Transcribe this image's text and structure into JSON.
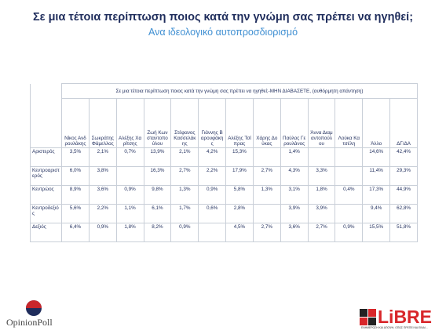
{
  "header": {
    "title": "Σε μια τέτοια περίπτωση ποιος κατά την γνώμη σας πρέπει να ηγηθεί;",
    "subtitle": "Ανα ιδεολογικό αυτοπροσδιορισμό"
  },
  "table": {
    "caption": "Σε μια τέτοια περίπτωση ποιος κατά την γνώμη σας πρέπει να ηγηθεί;-ΜΗΝ ΔΙΑΒΑΣΕΤΕ, (αυθόρμητη απάντηση)",
    "columns": [
      "Νίκος Ανδρουλάκης",
      "Σωκράτης Φάμελλος",
      "Αλέξης Χαρίτσης",
      "Ζωή Κωνσταντοπούλου",
      "Στέφανος Κασσελάκης",
      "Γιάννης Βαρουφάκης",
      "Αλέξης Τσίπρας",
      "Χάρης Δούκας",
      "Παύλος Γερουλάνος",
      "Άννα Διαμαντοπούλου",
      "Λούκα Κατσέλη",
      "Άλλο",
      "ΔΓ/ΔΑ"
    ],
    "row_labels": [
      "Αριστερός",
      "Κεντροαριστερός",
      "Κεντρώος",
      "Κεντροδεξιός",
      "Δεξιός"
    ],
    "rows": [
      [
        "3,5%",
        "2,1%",
        "0,7%",
        "13,9%",
        "2,1%",
        "4,2%",
        "15,3%",
        null,
        "1,4%",
        null,
        null,
        "14,6%",
        "42,4%"
      ],
      [
        "6,0%",
        "3,8%",
        null,
        "16,3%",
        "2,7%",
        "2,2%",
        "17,9%",
        "2,7%",
        "4,3%",
        "3,3%",
        null,
        "11,4%",
        "29,3%"
      ],
      [
        "8,9%",
        "3,6%",
        "0,9%",
        "9,8%",
        "1,3%",
        "0,9%",
        "5,8%",
        "1,3%",
        "3,1%",
        "1,8%",
        "0,4%",
        "17,3%",
        "44,9%"
      ],
      [
        "5,6%",
        "2,2%",
        "1,1%",
        "6,1%",
        "1,7%",
        "0,6%",
        "2,8%",
        null,
        "3,9%",
        "3,9%",
        null,
        "9,4%",
        "62,8%"
      ],
      [
        "6,4%",
        "0,9%",
        "1,8%",
        "8,2%",
        "0,9%",
        null,
        "4,5%",
        "2,7%",
        "3,6%",
        "2,7%",
        "0,9%",
        "15,5%",
        "51,8%"
      ]
    ]
  },
  "footer": {
    "left_logo": "OpinionPoll",
    "right_logo": "LiBRE",
    "right_tagline": "ΕΝΗΜΕΡΩΣΗ ΚΑΙ ΑΠΟΨΗ, ΟΠΩΣ ΠΡΕΠΕΙ ΝΑ ΕΙΝΑΙ..."
  }
}
